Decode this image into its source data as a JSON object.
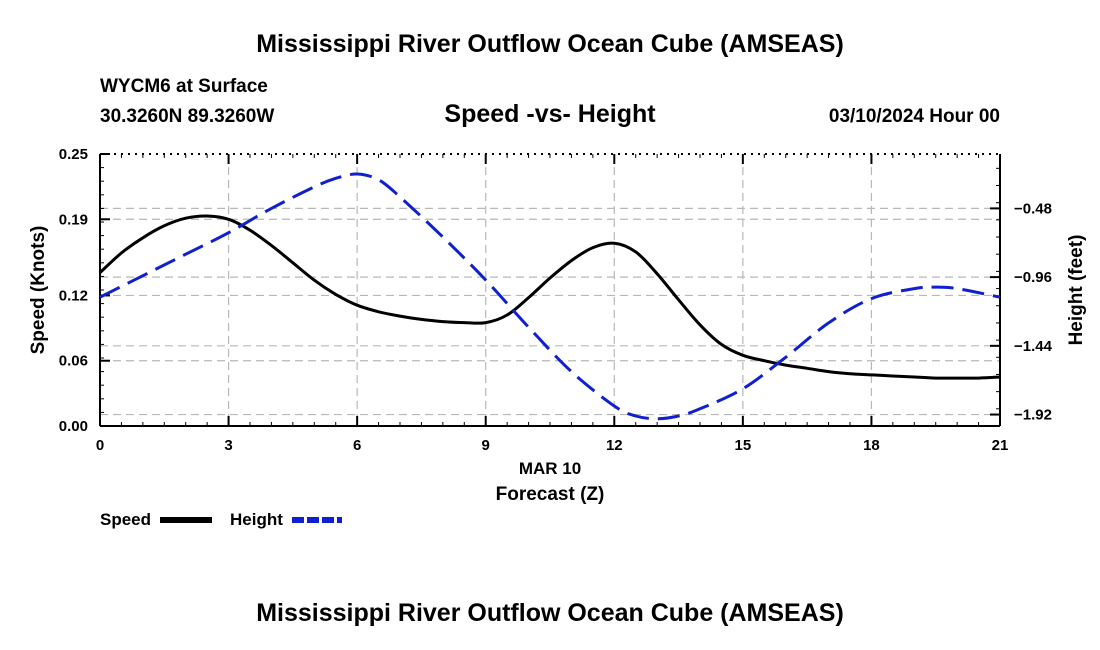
{
  "header": {
    "title": "Mississippi River Outflow Ocean Cube (AMSEAS)",
    "station": "WYCM6 at Surface",
    "coordinates": "30.3260N  89.3260W",
    "subtitle": "Speed -vs- Height",
    "datetime": "03/10/2024 Hour 00"
  },
  "footer": {
    "title": "Mississippi River Outflow Ocean Cube (AMSEAS)"
  },
  "colors": {
    "speed": "#000000",
    "height": "#1020d0",
    "grid": "#b8b8b8"
  },
  "chart_data": {
    "type": "line",
    "title": "Speed -vs- Height",
    "xlabel": "Forecast (Z)",
    "xlabel_date": "MAR 10",
    "ylabel": "Speed (Knots)",
    "y2label": "Height (feet)",
    "xlim": [
      0,
      21
    ],
    "ylim": [
      0,
      0.25
    ],
    "y2lim": [
      -2.0,
      -0.1
    ],
    "xticks": [
      0,
      3,
      6,
      9,
      12,
      15,
      18,
      21
    ],
    "yticks": [
      0.0,
      0.06,
      0.12,
      0.19,
      0.25
    ],
    "ytick_labels": [
      "0.00",
      "0.06",
      "0.12",
      "0.19",
      "0.25"
    ],
    "y2ticks": [
      -1.92,
      -1.44,
      -0.96,
      -0.48
    ],
    "y2tick_labels": [
      "−1.92",
      "−1.44",
      "−0.96",
      "−0.48"
    ],
    "grid": true,
    "legend": [
      "Speed",
      "Height"
    ],
    "series": [
      {
        "name": "Speed",
        "axis": "left",
        "style": "solid",
        "x": [
          0,
          0.5,
          1,
          1.5,
          2,
          2.5,
          3,
          3.5,
          4,
          4.5,
          5,
          5.5,
          6,
          6.5,
          7,
          7.5,
          8,
          8.5,
          9,
          9.5,
          10,
          10.5,
          11,
          11.5,
          12,
          12.5,
          13,
          13.5,
          14,
          14.5,
          15,
          15.5,
          16,
          16.5,
          17,
          17.5,
          18,
          18.5,
          19,
          19.5,
          20,
          20.5,
          21
        ],
        "values": [
          0.141,
          0.159,
          0.173,
          0.184,
          0.191,
          0.193,
          0.19,
          0.18,
          0.166,
          0.15,
          0.134,
          0.121,
          0.111,
          0.105,
          0.101,
          0.098,
          0.096,
          0.095,
          0.095,
          0.102,
          0.118,
          0.136,
          0.152,
          0.164,
          0.168,
          0.16,
          0.14,
          0.116,
          0.093,
          0.075,
          0.065,
          0.06,
          0.056,
          0.053,
          0.05,
          0.048,
          0.047,
          0.046,
          0.045,
          0.044,
          0.044,
          0.044,
          0.045
        ]
      },
      {
        "name": "Height",
        "axis": "right",
        "style": "dashed",
        "x": [
          0,
          1,
          2,
          3,
          4,
          5,
          5.5,
          6,
          6.5,
          7,
          8,
          9,
          10,
          11,
          12,
          12.5,
          13,
          13.5,
          14,
          15,
          16,
          17,
          18,
          19,
          19.5,
          20,
          21
        ],
        "values": [
          -1.1,
          -0.95,
          -0.8,
          -0.65,
          -0.48,
          -0.33,
          -0.27,
          -0.24,
          -0.28,
          -0.4,
          -0.68,
          -0.98,
          -1.31,
          -1.62,
          -1.86,
          -1.93,
          -1.95,
          -1.93,
          -1.88,
          -1.74,
          -1.52,
          -1.28,
          -1.11,
          -1.04,
          -1.03,
          -1.04,
          -1.1
        ]
      }
    ]
  }
}
